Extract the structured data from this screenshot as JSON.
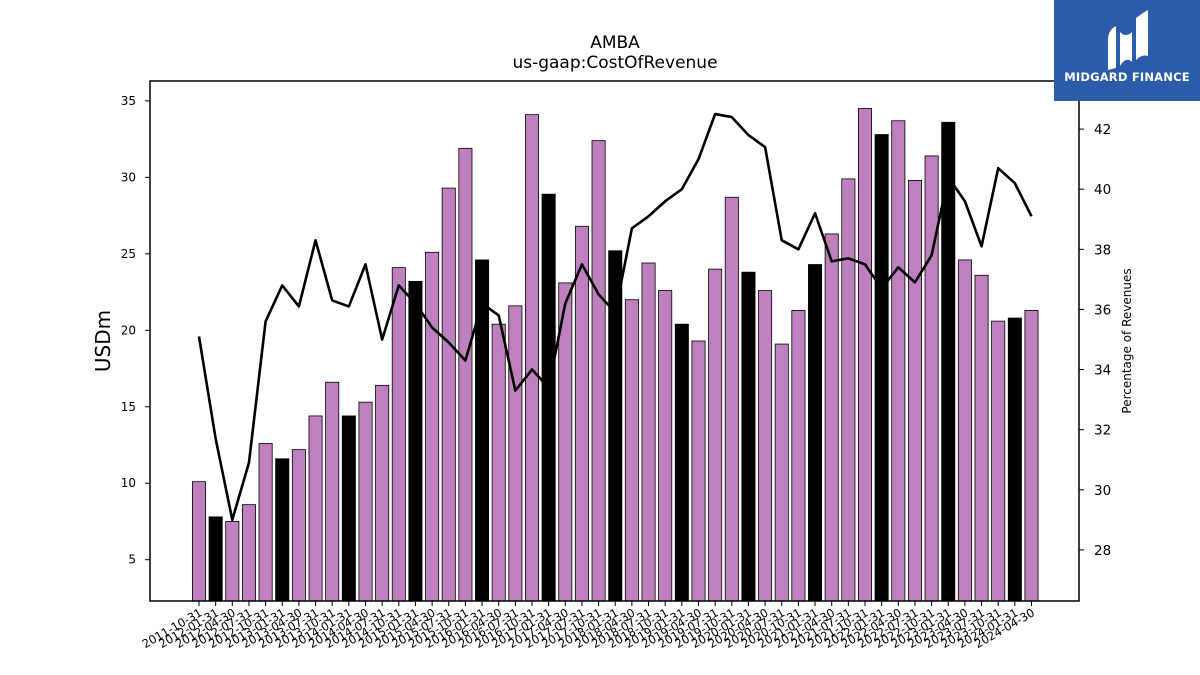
{
  "chart_data": {
    "type": "bar",
    "title": "AMBA",
    "subtitle": "us-gaap:CostOfRevenue",
    "ylabel": "USDm",
    "y2label": "Percentage of Revenues",
    "ylim": [
      2.3,
      36.3
    ],
    "y2lim": [
      26.3,
      43.6
    ],
    "yticks": [
      5,
      10,
      15,
      20,
      25,
      30,
      35
    ],
    "y2ticks": [
      28,
      30,
      32,
      34,
      36,
      38,
      40,
      42
    ],
    "grid": false,
    "bar_colors": {
      "quarter": "#bf80bf",
      "fiscal_year_end": "#000000"
    },
    "line_color": "#000000",
    "categories": [
      "2011-10-31",
      "2012-01-31",
      "2012-04-30",
      "2012-07-31",
      "2012-10-31",
      "2013-01-31",
      "2013-04-30",
      "2013-07-31",
      "2013-10-31",
      "2014-01-31",
      "2014-04-30",
      "2014-07-31",
      "2014-10-31",
      "2015-01-31",
      "2015-04-30",
      "2015-07-31",
      "2015-10-31",
      "2016-01-31",
      "2016-04-30",
      "2016-07-31",
      "2016-10-31",
      "2017-01-31",
      "2017-04-30",
      "2017-07-31",
      "2017-10-31",
      "2018-01-31",
      "2018-04-30",
      "2018-07-31",
      "2018-10-31",
      "2019-01-31",
      "2019-04-30",
      "2019-07-31",
      "2019-10-31",
      "2020-01-31",
      "2020-04-30",
      "2020-07-31",
      "2020-10-31",
      "2021-01-31",
      "2021-04-30",
      "2021-07-31",
      "2021-10-31",
      "2022-01-31",
      "2022-04-30",
      "2022-07-31",
      "2022-10-31",
      "2023-01-31",
      "2023-04-30",
      "2023-07-31",
      "2023-10-31",
      "2024-01-31",
      "2024-04-30"
    ],
    "series": [
      {
        "type": "bar",
        "values": [
          10.1,
          7.8,
          7.5,
          8.6,
          12.6,
          11.6,
          12.2,
          14.4,
          16.6,
          14.4,
          15.3,
          16.4,
          24.1,
          23.2,
          25.1,
          29.3,
          31.9,
          24.6,
          20.4,
          21.6,
          34.1,
          28.9,
          23.1,
          26.8,
          32.4,
          25.2,
          22.0,
          24.4,
          22.6,
          20.4,
          19.3,
          24.0,
          28.7,
          23.8,
          22.6,
          19.1,
          21.3,
          24.3,
          26.3,
          29.9,
          34.5,
          32.8,
          33.7,
          29.8,
          31.4,
          33.6,
          24.6,
          23.6,
          20.6,
          20.8,
          21.3
        ],
        "fiscal_year_end": [
          false,
          true,
          false,
          false,
          false,
          true,
          false,
          false,
          false,
          true,
          false,
          false,
          false,
          true,
          false,
          false,
          false,
          true,
          false,
          false,
          false,
          true,
          false,
          false,
          false,
          true,
          false,
          false,
          false,
          true,
          false,
          false,
          false,
          true,
          false,
          false,
          false,
          true,
          false,
          false,
          false,
          true,
          false,
          false,
          false,
          true,
          false,
          false,
          false,
          true,
          false
        ]
      },
      {
        "type": "line",
        "axis": "right",
        "values": [
          35.1,
          31.7,
          29.0,
          30.9,
          35.6,
          36.8,
          36.1,
          38.3,
          36.3,
          36.1,
          37.5,
          35.0,
          36.8,
          36.2,
          35.4,
          34.9,
          34.3,
          36.2,
          35.8,
          33.3,
          34.0,
          33.4,
          36.2,
          37.5,
          36.5,
          35.9,
          38.7,
          39.1,
          39.6,
          40.0,
          41.0,
          42.5,
          42.4,
          41.8,
          41.4,
          38.3,
          38.0,
          39.2,
          37.6,
          37.7,
          37.5,
          36.7,
          37.4,
          36.9,
          37.8,
          40.4,
          39.6,
          38.1,
          40.7,
          40.2,
          39.1
        ]
      }
    ]
  },
  "logo": {
    "text": "MIDGARD FINANCE"
  }
}
